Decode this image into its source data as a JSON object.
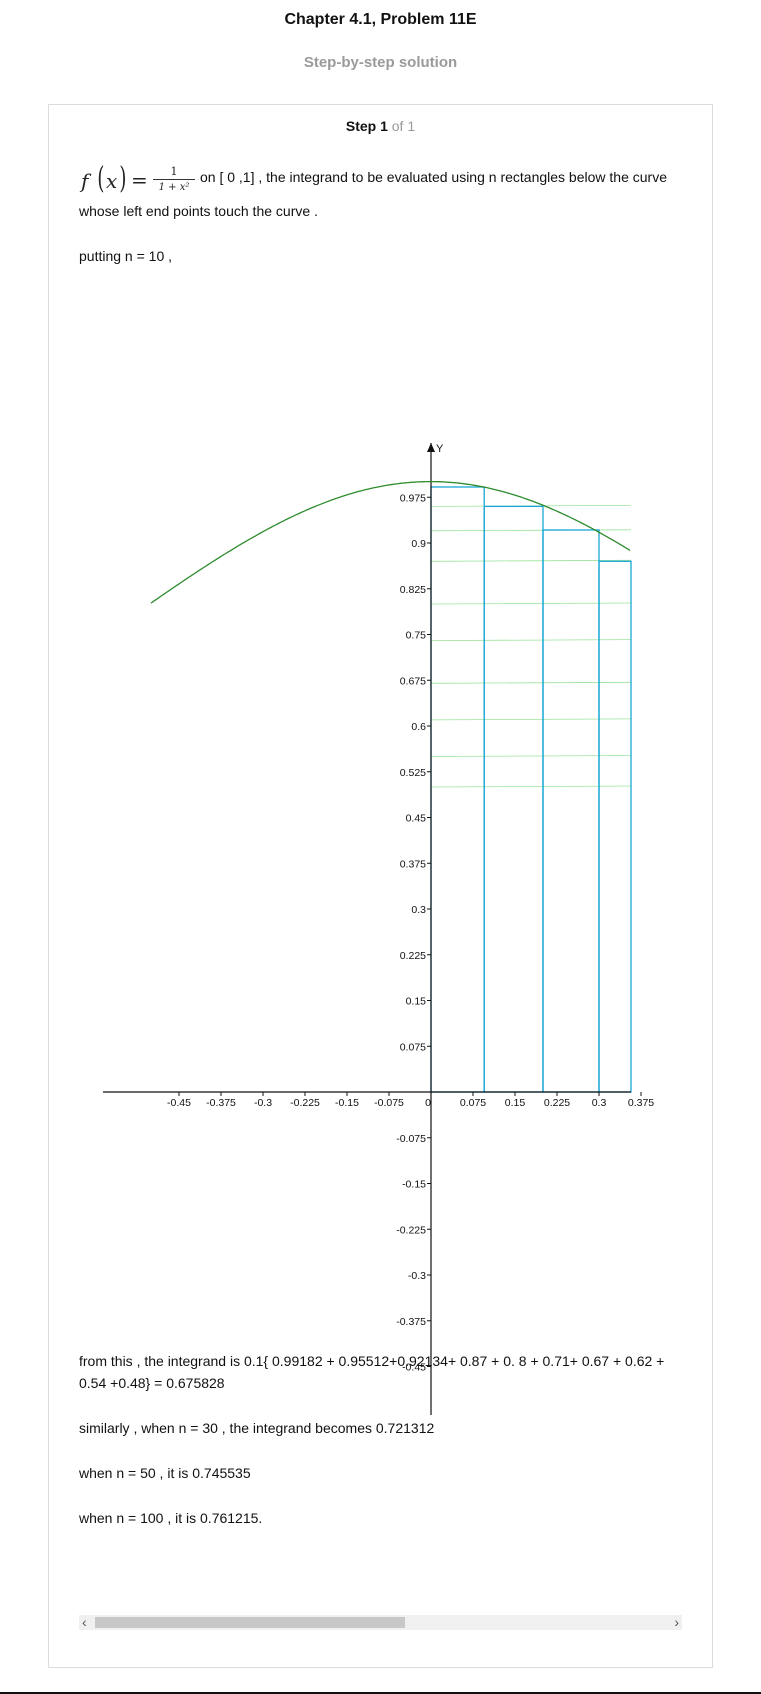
{
  "header": {
    "title": "Chapter 4.1, Problem 11E",
    "subtitle": "Step-by-step solution"
  },
  "step": {
    "label": "Step 1",
    "of": "of 1"
  },
  "formula": {
    "f": "f",
    "x": "x",
    "eq": "=",
    "numerator": "1",
    "denominator": "1 + x²"
  },
  "text": {
    "line1": "on [ 0 ,1] , the integrand to be evaluated using n  rectangles below the curve",
    "line2": "whose left end points touch the curve .",
    "line3": "putting n = 10 ,",
    "line4": "from this , the integrand is 0.1{ 0.99182 + 0.95512+0.92134+ 0.87 + 0. 8 + 0.71+ 0.67 + 0.62 +",
    "line5": "0.54 +0.48} = 0.675828",
    "line6": "similarly , when n = 30 , the integrand becomes 0.721312",
    "line7": "when n = 50 , it is 0.745535",
    "line8": "when n = 100 , it is 0.761215."
  },
  "chart_data": {
    "type": "line",
    "axis_label_y": "Y",
    "xlim": [
      -0.52,
      0.41
    ],
    "ylim": [
      -0.52,
      1.01
    ],
    "x_ticks": [
      -0.45,
      -0.375,
      -0.3,
      -0.225,
      -0.15,
      -0.075,
      0,
      0.075,
      0.15,
      0.225,
      0.3,
      0.375
    ],
    "x_tick_labels": [
      "-0.45",
      "-0.375",
      "-0.3",
      "-0.225",
      "-0.15",
      "-0.075",
      "0",
      "0.075",
      "0.15",
      "0.225",
      "0.3",
      "0.375"
    ],
    "y_ticks": [
      0.975,
      0.9,
      0.825,
      0.75,
      0.675,
      0.6,
      0.525,
      0.45,
      0.375,
      0.3,
      0.225,
      0.15,
      0.075,
      -0.075,
      -0.15,
      -0.225,
      -0.3,
      -0.375,
      -0.45
    ],
    "y_tick_labels": [
      "0.975",
      "0.9",
      "0.825",
      "0.75",
      "0.675",
      "0.6",
      "0.525",
      "0.45",
      "0.375",
      "0.3",
      "0.225",
      "0.15",
      "0.075",
      "-0.075",
      "-0.15",
      "-0.225",
      "-0.3",
      "-0.375",
      "-0.45"
    ],
    "curve": {
      "function": "1/(1+x^2)",
      "x_range": [
        -0.5,
        0.41
      ],
      "color": "#2e8b2e"
    },
    "rectangles": [
      {
        "x0": 0.0,
        "x1": 0.095,
        "height": 0.99182
      },
      {
        "x0": 0.095,
        "x1": 0.2,
        "height": 0.96
      },
      {
        "x0": 0.2,
        "x1": 0.3,
        "height": 0.92134
      },
      {
        "x0": 0.3,
        "x1": 0.387,
        "height": 0.87
      }
    ],
    "rect_color": "#1aa6d6",
    "guide_levels": [
      0.96,
      0.92,
      0.87,
      0.8,
      0.74,
      0.67,
      0.61,
      0.55,
      0.5
    ],
    "guide_color": "#9be39b"
  }
}
